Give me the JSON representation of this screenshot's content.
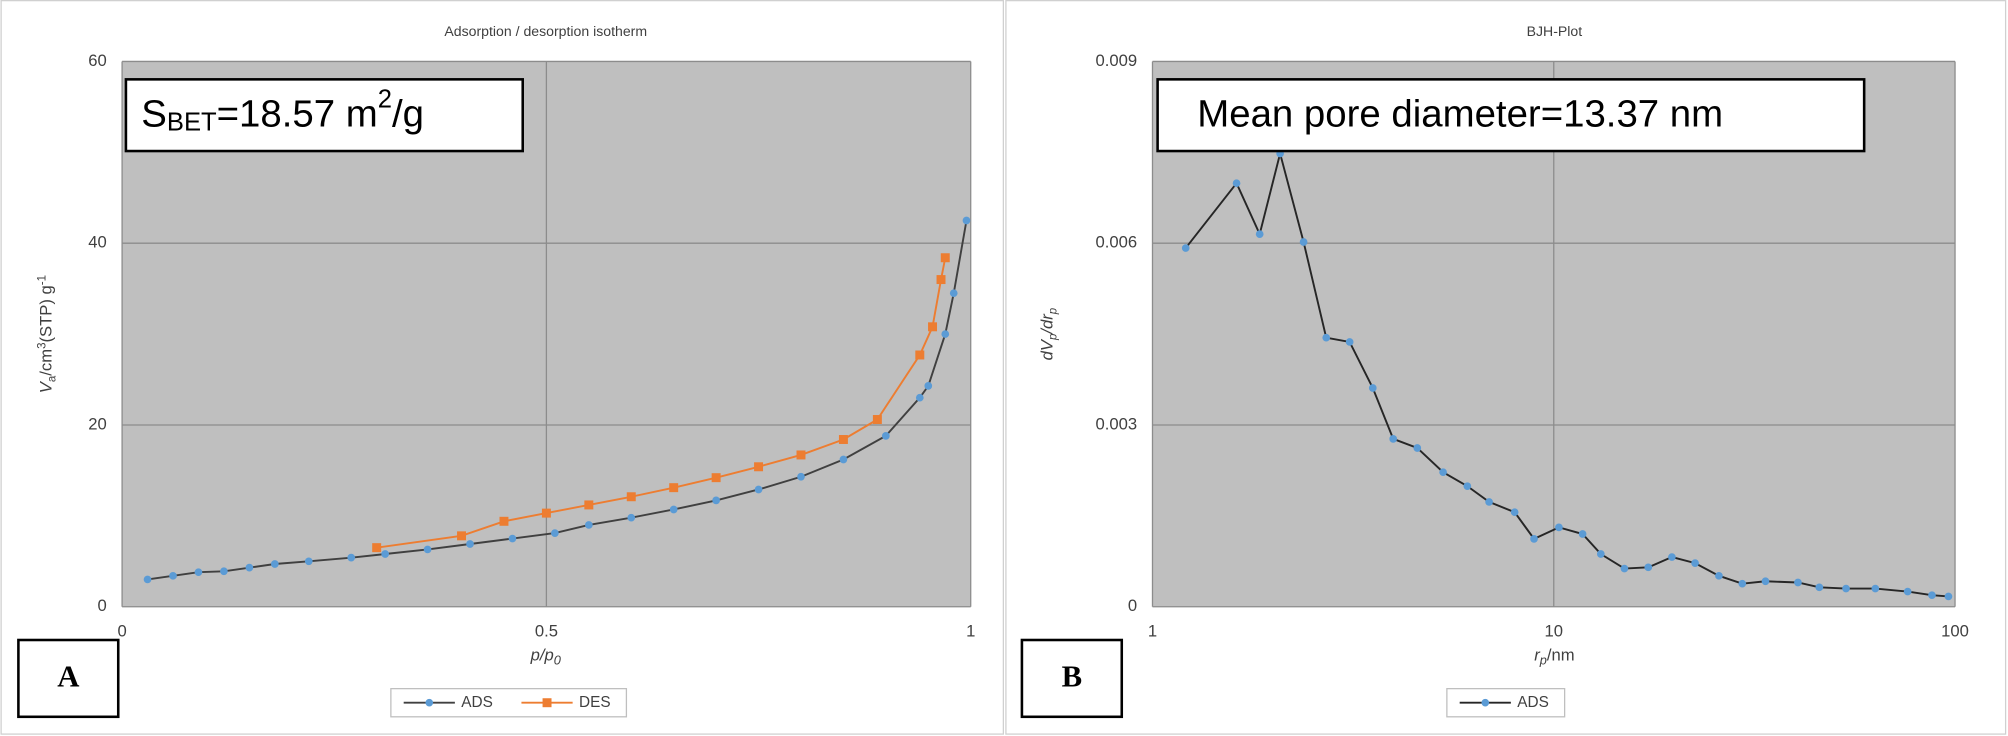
{
  "chart_data": [
    {
      "type": "line",
      "title": "Adsorption / desorption isotherm",
      "annotation": [
        "S",
        "BET",
        "=18.57 m",
        "2",
        "/g"
      ],
      "panel_label": "A",
      "xlabel": [
        "p/p",
        "0"
      ],
      "ylabel": [
        "V",
        "a",
        "/cm",
        "3",
        "(STP) g",
        "-1"
      ],
      "xlim": [
        0,
        1
      ],
      "xticks": [
        0,
        0.5,
        1
      ],
      "ylim": [
        0,
        60
      ],
      "yticks": [
        0,
        20,
        40,
        60
      ],
      "grid": true,
      "series": [
        {
          "name": "ADS",
          "color": "#5b9bd5",
          "line_color": "#404040",
          "marker": "circle",
          "x": [
            0.03,
            0.06,
            0.09,
            0.12,
            0.15,
            0.18,
            0.22,
            0.27,
            0.31,
            0.36,
            0.41,
            0.46,
            0.51,
            0.55,
            0.6,
            0.65,
            0.7,
            0.75,
            0.8,
            0.85,
            0.9,
            0.94,
            0.95,
            0.97,
            0.98,
            0.995
          ],
          "values": [
            3.0,
            3.4,
            3.8,
            3.9,
            4.3,
            4.7,
            5.0,
            5.4,
            5.8,
            6.3,
            6.9,
            7.5,
            8.1,
            9.0,
            9.8,
            10.7,
            11.7,
            12.9,
            14.3,
            16.2,
            18.8,
            23.0,
            24.3,
            30.0,
            34.5,
            42.5
          ]
        },
        {
          "name": "DES",
          "color": "#ed7d31",
          "line_color": "#ed7d31",
          "marker": "square",
          "x": [
            0.3,
            0.4,
            0.45,
            0.5,
            0.55,
            0.6,
            0.65,
            0.7,
            0.75,
            0.8,
            0.85,
            0.89,
            0.94,
            0.955,
            0.965,
            0.97
          ],
          "values": [
            6.5,
            7.8,
            9.4,
            10.3,
            11.2,
            12.1,
            13.1,
            14.2,
            15.4,
            16.7,
            18.4,
            20.6,
            27.7,
            30.8,
            36.0,
            38.4
          ]
        }
      ]
    },
    {
      "type": "line",
      "title": "BJH-Plot",
      "annotation": [
        "Mean pore diameter=13.37 nm"
      ],
      "panel_label": "B",
      "xlabel": [
        "r",
        "p",
        "/nm"
      ],
      "ylabel": [
        "dV",
        "p",
        "/dr",
        "p"
      ],
      "xscale": "log",
      "xlim": [
        1,
        100
      ],
      "xticks": [
        1,
        10,
        100
      ],
      "ylim": [
        0,
        0.009
      ],
      "yticks": [
        0,
        0.003,
        0.006,
        0.009
      ],
      "grid": true,
      "series": [
        {
          "name": "ADS",
          "color": "#5b9bd5",
          "line_color": "#262626",
          "marker": "circle",
          "x": [
            1.21,
            1.62,
            1.85,
            2.08,
            2.38,
            2.71,
            3.1,
            3.54,
            3.98,
            4.57,
            5.3,
            6.09,
            6.9,
            7.99,
            8.93,
            10.3,
            11.8,
            13.1,
            15.0,
            17.2,
            19.7,
            22.5,
            25.8,
            29.5,
            33.7,
            40.6,
            45.9,
            53.5,
            63.3,
            76.2,
            87.6,
            96.3
          ],
          "values": [
            0.00592,
            0.00699,
            0.00615,
            0.00748,
            0.00602,
            0.00444,
            0.00437,
            0.00361,
            0.00277,
            0.00262,
            0.00222,
            0.00199,
            0.00173,
            0.00156,
            0.00112,
            0.00131,
            0.0012,
            0.00087,
            0.00063,
            0.00065,
            0.00082,
            0.00072,
            0.00051,
            0.00038,
            0.00042,
            0.0004,
            0.00032,
            0.0003,
            0.0003,
            0.00025,
            0.00019,
            0.00017
          ]
        }
      ]
    }
  ]
}
